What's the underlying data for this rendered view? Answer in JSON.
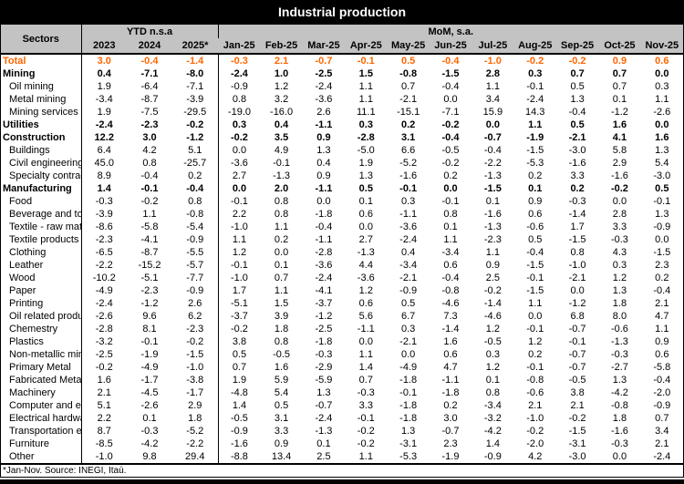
{
  "title": "Industrial production",
  "colors": {
    "title_bg": "#000000",
    "title_text": "#ffffff",
    "header_gray": "#c3c3c3",
    "total_row_orange": "#ff6600",
    "border_black": "#000000"
  },
  "chart_data": {
    "type": "table",
    "title": "Industrial production",
    "footnote": "*Jan-Nov. Source: INEGI, Itaú.",
    "column_groups": [
      {
        "label": "Sectors",
        "span": 1
      },
      {
        "label": "YTD n.s.a",
        "span": 3
      },
      {
        "label": "MoM, s.a.",
        "span": 11
      }
    ],
    "columns": [
      "2023",
      "2024",
      "2025*",
      "Jan-25",
      "Feb-25",
      "Mar-25",
      "Apr-25",
      "May-25",
      "Jun-25",
      "Jul-25",
      "Aug-25",
      "Sep-25",
      "Oct-25",
      "Nov-25"
    ],
    "rows": [
      {
        "sector": "Total",
        "style": "total",
        "values": [
          "3.0",
          "-0.4",
          "-1.4",
          "-0.3",
          "2.1",
          "-0.7",
          "-0.1",
          "0.5",
          "-0.4",
          "-1.0",
          "-0.2",
          "-0.2",
          "0.9",
          "0.6"
        ]
      },
      {
        "sector": "Mining",
        "style": "section",
        "values": [
          "0.4",
          "-7.1",
          "-8.0",
          "-2.4",
          "1.0",
          "-2.5",
          "1.5",
          "-0.8",
          "-1.5",
          "2.8",
          "0.3",
          "0.7",
          "0.7",
          "0.0"
        ]
      },
      {
        "sector": "Oil mining",
        "style": "sub",
        "values": [
          "1.9",
          "-6.4",
          "-7.1",
          "-0.9",
          "1.2",
          "-2.4",
          "1.1",
          "0.7",
          "-0.4",
          "1.1",
          "-0.1",
          "0.5",
          "0.7",
          "0.3"
        ]
      },
      {
        "sector": "Metal mining",
        "style": "sub",
        "values": [
          "-3.4",
          "-8.7",
          "-3.9",
          "0.8",
          "3.2",
          "-3.6",
          "1.1",
          "-2.1",
          "0.0",
          "3.4",
          "-2.4",
          "1.3",
          "0.1",
          "1.1"
        ]
      },
      {
        "sector": "Mining services",
        "style": "sub",
        "values": [
          "1.9",
          "-7.5",
          "-29.5",
          "-19.0",
          "-16.0",
          "2.6",
          "11.1",
          "-15.1",
          "-7.1",
          "15.9",
          "14.3",
          "-0.4",
          "-1.2",
          "-2.6"
        ]
      },
      {
        "sector": "Utilities",
        "style": "section",
        "values": [
          "-2.4",
          "-2.3",
          "-0.2",
          "0.3",
          "0.4",
          "-1.1",
          "0.3",
          "0.2",
          "-0.2",
          "0.0",
          "1.1",
          "0.5",
          "1.6",
          "0.0"
        ]
      },
      {
        "sector": "Construction",
        "style": "section",
        "values": [
          "12.2",
          "3.0",
          "-1.2",
          "-0.2",
          "3.5",
          "0.9",
          "-2.8",
          "3.1",
          "-0.4",
          "-0.7",
          "-1.9",
          "-2.1",
          "4.1",
          "1.6"
        ]
      },
      {
        "sector": "Buildings",
        "style": "sub",
        "values": [
          "6.4",
          "4.2",
          "5.1",
          "0.0",
          "4.9",
          "1.3",
          "-5.0",
          "6.6",
          "-0.5",
          "-0.4",
          "-1.5",
          "-3.0",
          "5.8",
          "1.3"
        ]
      },
      {
        "sector": "Civil engineering",
        "style": "sub",
        "values": [
          "45.0",
          "0.8",
          "-25.7",
          "-3.6",
          "-0.1",
          "0.4",
          "1.9",
          "-5.2",
          "-0.2",
          "-2.2",
          "-5.3",
          "-1.6",
          "2.9",
          "5.4"
        ]
      },
      {
        "sector": "Specialty contracto",
        "style": "sub",
        "values": [
          "8.9",
          "-0.4",
          "0.2",
          "2.7",
          "-1.3",
          "0.9",
          "1.3",
          "-1.6",
          "0.2",
          "-1.3",
          "0.2",
          "3.3",
          "-1.6",
          "-3.0"
        ]
      },
      {
        "sector": "Manufacturing",
        "style": "section",
        "values": [
          "1.4",
          "-0.1",
          "-0.4",
          "0.0",
          "2.0",
          "-1.1",
          "0.5",
          "-0.1",
          "0.0",
          "-1.5",
          "0.1",
          "0.2",
          "-0.2",
          "0.5"
        ]
      },
      {
        "sector": "Food",
        "style": "sub",
        "values": [
          "-0.3",
          "-0.2",
          "0.8",
          "-0.1",
          "0.8",
          "0.0",
          "0.1",
          "0.3",
          "-0.1",
          "0.1",
          "0.9",
          "-0.3",
          "0.0",
          "-0.1"
        ]
      },
      {
        "sector": "Beverage and toba",
        "style": "sub",
        "values": [
          "-3.9",
          "1.1",
          "-0.8",
          "2.2",
          "0.8",
          "-1.8",
          "0.6",
          "-1.1",
          "0.8",
          "-1.6",
          "0.6",
          "-1.4",
          "2.8",
          "1.3"
        ]
      },
      {
        "sector": "Textile - raw mater",
        "style": "sub",
        "values": [
          "-8.6",
          "-5.8",
          "-5.4",
          "-1.0",
          "1.1",
          "-0.4",
          "0.0",
          "-3.6",
          "0.1",
          "-1.3",
          "-0.6",
          "1.7",
          "3.3",
          "-0.9"
        ]
      },
      {
        "sector": "Textile products ex",
        "style": "sub",
        "values": [
          "-2.3",
          "-4.1",
          "-0.9",
          "1.1",
          "0.2",
          "-1.1",
          "2.7",
          "-2.4",
          "1.1",
          "-2.3",
          "0.5",
          "-1.5",
          "-0.3",
          "0.0"
        ]
      },
      {
        "sector": "Clothing",
        "style": "sub",
        "values": [
          "-6.5",
          "-8.7",
          "-5.5",
          "1.2",
          "0.0",
          "-2.8",
          "-1.3",
          "0.4",
          "-3.4",
          "1.1",
          "-0.4",
          "0.8",
          "4.3",
          "-1.5"
        ]
      },
      {
        "sector": "Leather",
        "style": "sub",
        "values": [
          "-2.2",
          "-15.2",
          "-5.7",
          "-0.1",
          "0.1",
          "-3.6",
          "4.4",
          "-3.4",
          "0.6",
          "0.9",
          "-1.5",
          "-1.0",
          "0.3",
          "2.3"
        ]
      },
      {
        "sector": "Wood",
        "style": "sub",
        "values": [
          "-10.2",
          "-5.1",
          "-7.7",
          "-1.0",
          "0.7",
          "-2.4",
          "-3.6",
          "-2.1",
          "-0.4",
          "2.5",
          "-0.1",
          "-2.1",
          "1.2",
          "0.2"
        ]
      },
      {
        "sector": "Paper",
        "style": "sub",
        "values": [
          "-4.9",
          "-2.3",
          "-0.9",
          "1.7",
          "1.1",
          "-4.1",
          "1.2",
          "-0.9",
          "-0.8",
          "-0.2",
          "-1.5",
          "0.0",
          "1.3",
          "-0.4"
        ]
      },
      {
        "sector": "Printing",
        "style": "sub",
        "values": [
          "-2.4",
          "-1.2",
          "2.6",
          "-5.1",
          "1.5",
          "-3.7",
          "0.6",
          "0.5",
          "-4.6",
          "-1.4",
          "1.1",
          "-1.2",
          "1.8",
          "2.1"
        ]
      },
      {
        "sector": "Oil related products",
        "style": "sub",
        "values": [
          "-2.6",
          "9.6",
          "6.2",
          "-3.7",
          "3.9",
          "-1.2",
          "5.6",
          "6.7",
          "7.3",
          "-4.6",
          "0.0",
          "6.8",
          "8.0",
          "4.7"
        ]
      },
      {
        "sector": "Chemestry",
        "style": "sub",
        "values": [
          "-2.8",
          "8.1",
          "-2.3",
          "-0.2",
          "1.8",
          "-2.5",
          "-1.1",
          "0.3",
          "-1.4",
          "1.2",
          "-0.1",
          "-0.7",
          "-0.6",
          "1.1"
        ]
      },
      {
        "sector": "Plastics",
        "style": "sub",
        "values": [
          "-3.2",
          "-0.1",
          "-0.2",
          "3.8",
          "0.8",
          "-1.8",
          "0.0",
          "-2.1",
          "1.6",
          "-0.5",
          "1.2",
          "-0.1",
          "-1.3",
          "0.9"
        ]
      },
      {
        "sector": "Non-metallic miner",
        "style": "sub",
        "values": [
          "-2.5",
          "-1.9",
          "-1.5",
          "0.5",
          "-0.5",
          "-0.3",
          "1.1",
          "0.0",
          "0.6",
          "0.3",
          "0.2",
          "-0.7",
          "-0.3",
          "0.6"
        ]
      },
      {
        "sector": "Primary Metal",
        "style": "sub",
        "values": [
          "-0.2",
          "-4.9",
          "-1.0",
          "0.7",
          "1.6",
          "-2.9",
          "1.4",
          "-4.9",
          "4.7",
          "1.2",
          "-0.1",
          "-0.7",
          "-2.7",
          "-5.8"
        ]
      },
      {
        "sector": "Fabricated Metal",
        "style": "sub",
        "values": [
          "1.6",
          "-1.7",
          "-3.8",
          "1.9",
          "5.9",
          "-5.9",
          "0.7",
          "-1.8",
          "-1.1",
          "0.1",
          "-0.8",
          "-0.5",
          "1.3",
          "-0.4"
        ]
      },
      {
        "sector": "Machinery",
        "style": "sub",
        "values": [
          "2.1",
          "-4.5",
          "-1.7",
          "-4.8",
          "5.4",
          "1.3",
          "-0.3",
          "-0.1",
          "-1.8",
          "0.8",
          "-0.6",
          "3.8",
          "-4.2",
          "-2.0"
        ]
      },
      {
        "sector": "Computer and elec",
        "style": "sub",
        "values": [
          "5.1",
          "-2.6",
          "2.9",
          "1.4",
          "0.5",
          "-0.7",
          "3.3",
          "-1.8",
          "0.2",
          "-3.4",
          "2.1",
          "2.1",
          "-0.8",
          "-0.9"
        ]
      },
      {
        "sector": "Electrical hardware",
        "style": "sub",
        "values": [
          "2.2",
          "0.1",
          "1.8",
          "-0.5",
          "3.1",
          "-2.4",
          "-0.1",
          "-1.8",
          "3.0",
          "-3.2",
          "-1.0",
          "-0.2",
          "1.8",
          "0.7"
        ]
      },
      {
        "sector": "Transportation equ",
        "style": "sub",
        "values": [
          "8.7",
          "-0.3",
          "-5.2",
          "-0.9",
          "3.3",
          "-1.3",
          "-0.2",
          "1.3",
          "-0.7",
          "-4.2",
          "-0.2",
          "-1.5",
          "-1.6",
          "3.4"
        ]
      },
      {
        "sector": "Furniture",
        "style": "sub",
        "values": [
          "-8.5",
          "-4.2",
          "-2.2",
          "-1.6",
          "0.9",
          "0.1",
          "-0.2",
          "-3.1",
          "2.3",
          "1.4",
          "-2.0",
          "-3.1",
          "-0.3",
          "2.1"
        ]
      },
      {
        "sector": "Other",
        "style": "sub",
        "values": [
          "-1.0",
          "9.8",
          "29.4",
          "-8.8",
          "13.4",
          "2.5",
          "1.1",
          "-5.3",
          "-1.9",
          "-0.9",
          "4.2",
          "-3.0",
          "0.0",
          "-2.4"
        ]
      }
    ]
  }
}
